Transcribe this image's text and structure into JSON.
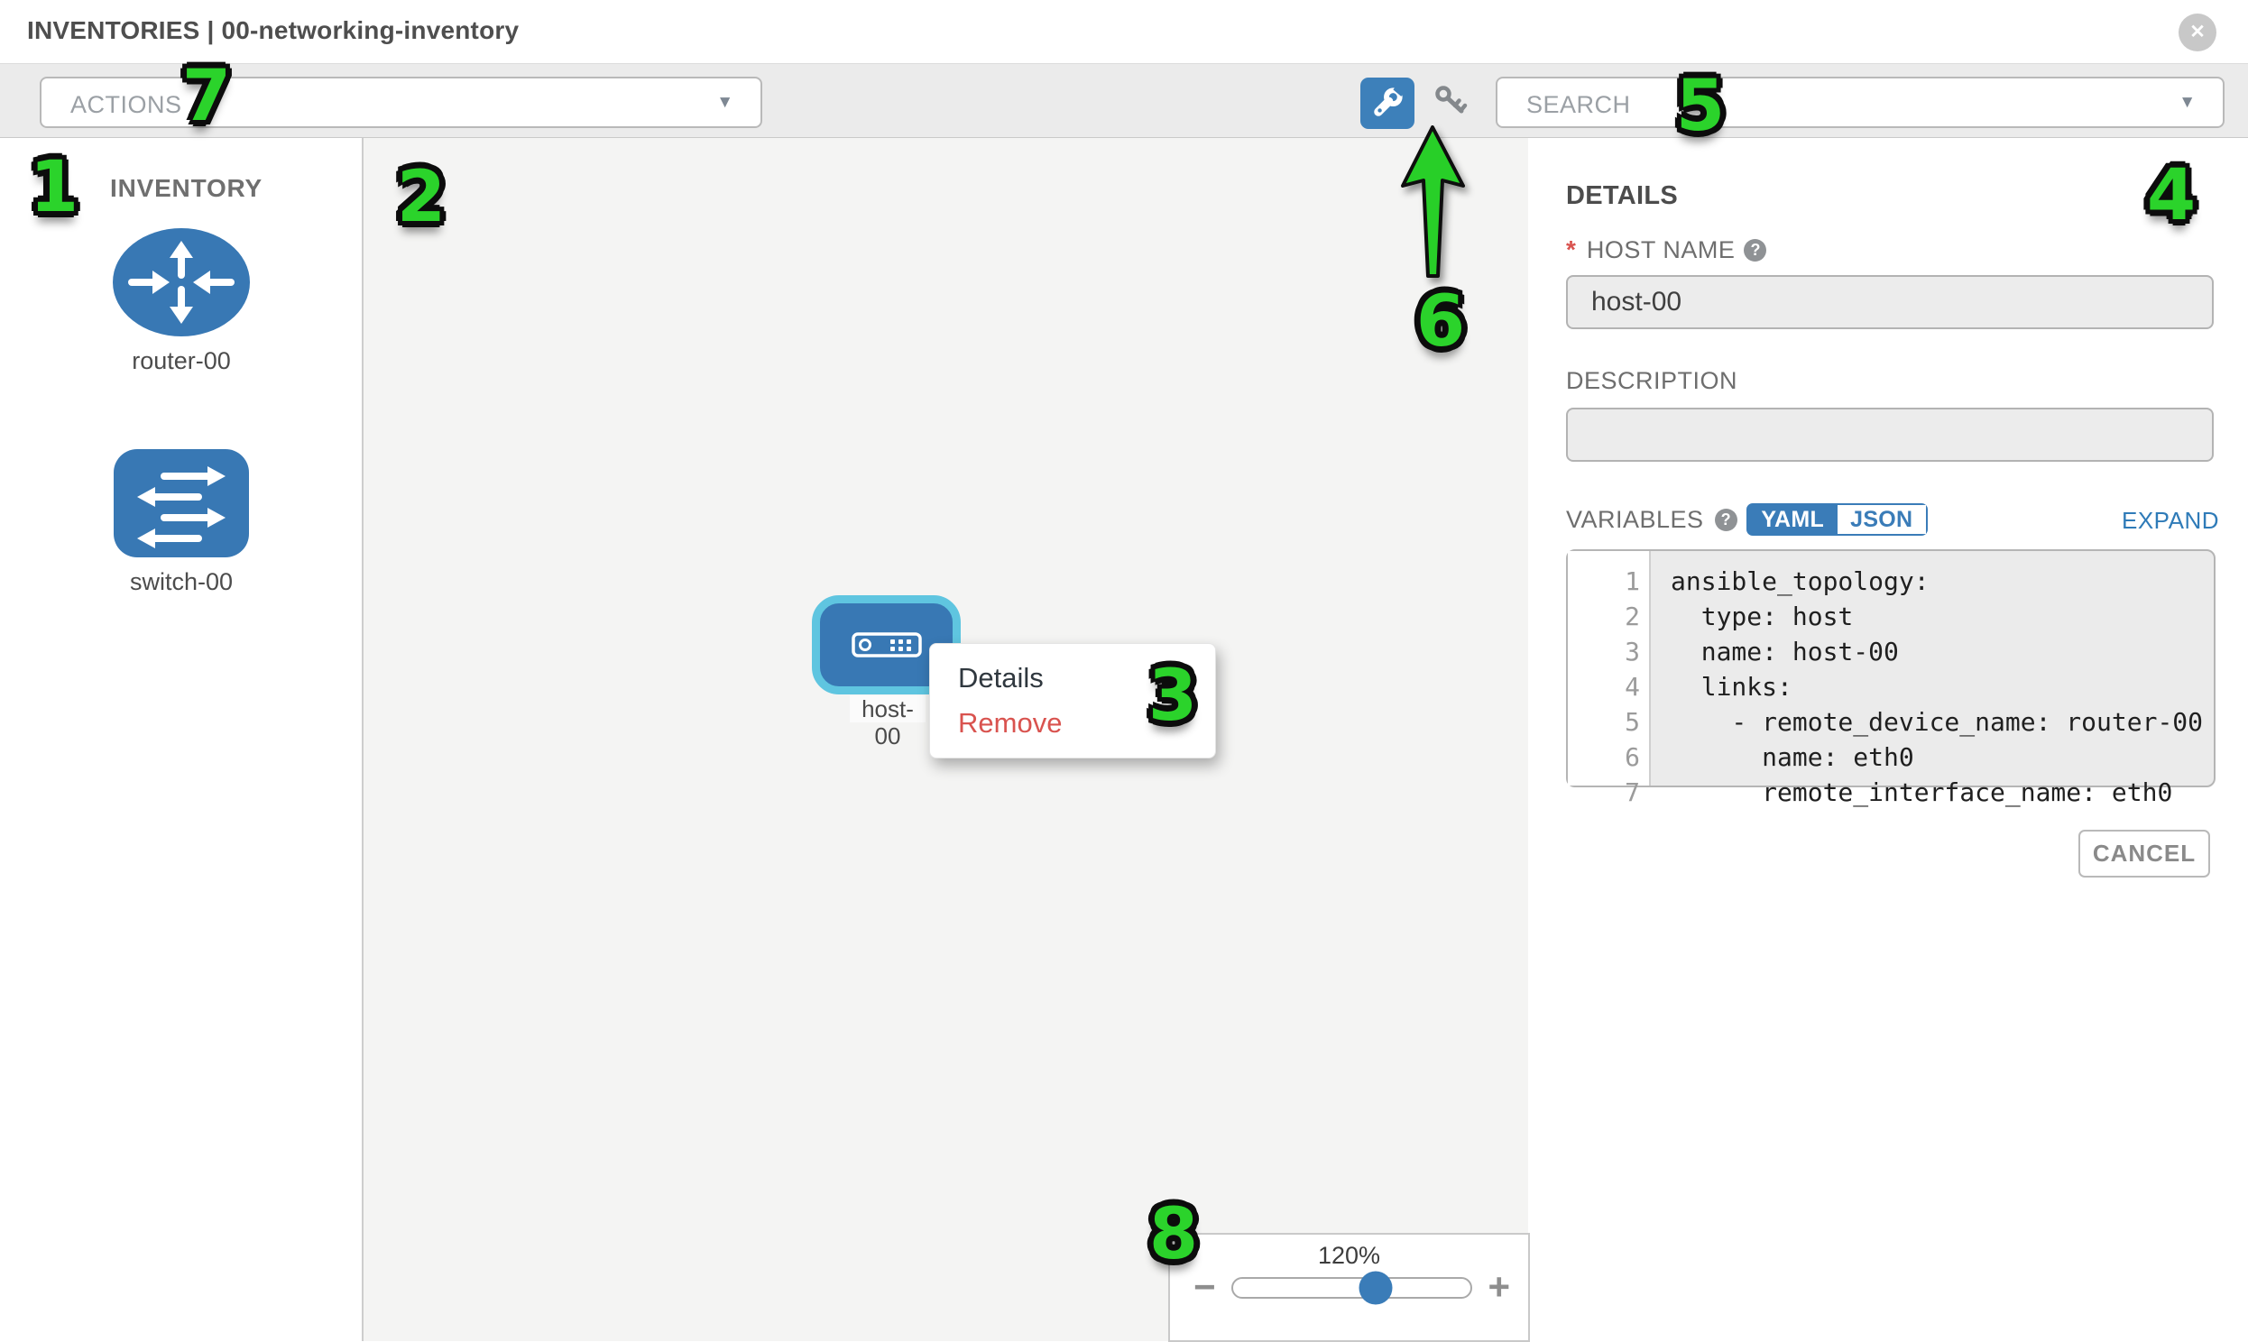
{
  "header": {
    "title": "INVENTORIES | 00-networking-inventory"
  },
  "icons": {
    "close": "✕",
    "chevron_down": "▼",
    "minus": "−",
    "plus": "+",
    "help": "?"
  },
  "colors": {
    "accent_blue": "#3a7cb8",
    "node_fill_blue": "#3878b4",
    "node_border_cyan": "#5fc5e0",
    "danger_red": "#d9534f",
    "annotation_green": "#2bd32b",
    "toolbar_gray": "#ebebeb"
  },
  "toolbar": {
    "actions_label": "ACTIONS",
    "search_label": "SEARCH"
  },
  "sidebar": {
    "title": "INVENTORY",
    "items": [
      {
        "label": "router-00",
        "type": "router"
      },
      {
        "label": "switch-00",
        "type": "switch"
      }
    ]
  },
  "canvas": {
    "node_label": "host-00",
    "menu": {
      "details": "Details",
      "remove": "Remove"
    },
    "zoom": {
      "level": "120%",
      "percent": 60
    }
  },
  "panel": {
    "title": "DETAILS",
    "host_name": {
      "required": "*",
      "label": "HOST NAME",
      "value": "host-00"
    },
    "description": {
      "label": "DESCRIPTION",
      "value": ""
    },
    "variables": {
      "label": "VARIABLES",
      "yaml": "YAML",
      "json": "JSON",
      "expand": "EXPAND"
    },
    "code": {
      "lines": [
        {
          "num": "1",
          "text": "ansible_topology:"
        },
        {
          "num": "2",
          "text": "  type: host"
        },
        {
          "num": "3",
          "text": "  name: host-00"
        },
        {
          "num": "4",
          "text": "  links:"
        },
        {
          "num": "5",
          "text": "    - remote_device_name: router-00"
        },
        {
          "num": "6",
          "text": "      name: eth0"
        },
        {
          "num": "7",
          "text": "      remote_interface_name: eth0"
        }
      ]
    },
    "cancel": "CANCEL"
  },
  "annotations": {
    "numbers": [
      "1",
      "2",
      "3",
      "4",
      "5",
      "6",
      "7",
      "8"
    ]
  }
}
